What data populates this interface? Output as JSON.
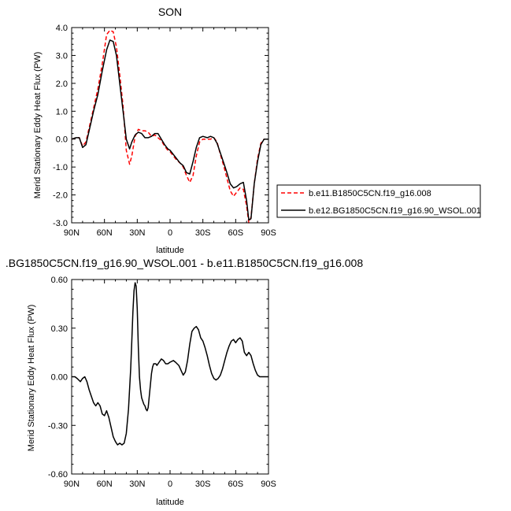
{
  "chart_data": [
    {
      "type": "line",
      "title": "SON",
      "xlabel": "latitude",
      "ylabel": "Merid Stationary Eddy Heat Flux (PW)",
      "xlim": [
        90,
        -90
      ],
      "ylim": [
        -3.0,
        4.0
      ],
      "xticks": [
        90,
        60,
        30,
        0,
        -30,
        -60,
        -90
      ],
      "xticklabels": [
        "90N",
        "60N",
        "30N",
        "0",
        "30S",
        "60S",
        "90S"
      ],
      "yticks": [
        -3.0,
        -2.0,
        -1.0,
        0.0,
        1.0,
        2.0,
        3.0,
        4.0
      ],
      "yticklabels": [
        "-3.0",
        "-2.0",
        "-1.0",
        "0.0",
        "1.0",
        "2.0",
        "3.0",
        "4.0"
      ],
      "legend_position": "right",
      "series": [
        {
          "name": "b.e11.B1850C5CN.f19_g16.008",
          "color": "#ff0000",
          "dash": "dashed",
          "x": [
            90,
            86,
            83,
            80,
            77,
            74,
            70,
            66,
            62,
            58,
            55,
            52,
            49,
            46,
            43,
            40,
            37,
            35,
            32,
            29,
            26,
            23,
            20,
            17,
            14,
            11,
            8,
            5,
            2,
            0,
            -3,
            -6,
            -9,
            -12,
            -15,
            -18,
            -21,
            -24,
            -27,
            -30,
            -34,
            -37,
            -40,
            -43,
            -46,
            -49,
            -52,
            -55,
            -58,
            -61,
            -64,
            -67,
            -70,
            -72,
            -74,
            -77,
            -80,
            -83,
            -86,
            -90
          ],
          "y": [
            0.0,
            0.05,
            0.05,
            -0.25,
            -0.1,
            0.4,
            1.1,
            1.8,
            2.7,
            3.75,
            3.9,
            3.85,
            3.3,
            2.3,
            1.2,
            -0.4,
            -0.9,
            -0.6,
            0.1,
            0.35,
            0.3,
            0.3,
            0.25,
            0.1,
            0.15,
            0.05,
            -0.05,
            -0.25,
            -0.4,
            -0.45,
            -0.6,
            -0.75,
            -0.85,
            -1.0,
            -1.3,
            -1.55,
            -1.3,
            -0.6,
            -0.1,
            0.0,
            0.0,
            0.0,
            0.05,
            -0.1,
            -0.55,
            -0.95,
            -1.4,
            -1.85,
            -2.05,
            -1.9,
            -1.75,
            -1.8,
            -2.4,
            -3.0,
            -2.8,
            -1.6,
            -0.7,
            -0.15,
            0.0,
            0.0
          ]
        },
        {
          "name": "b.e12.BG1850C5CN.f19_g16.90_WSOL.001",
          "color": "#000000",
          "dash": "solid",
          "x": [
            90,
            86,
            83,
            80,
            77,
            74,
            70,
            66,
            62,
            58,
            55,
            52,
            49,
            46,
            43,
            40,
            37,
            35,
            32,
            29,
            26,
            23,
            20,
            17,
            14,
            11,
            8,
            5,
            2,
            0,
            -3,
            -6,
            -9,
            -12,
            -15,
            -18,
            -21,
            -24,
            -27,
            -30,
            -34,
            -37,
            -40,
            -43,
            -46,
            -49,
            -52,
            -55,
            -58,
            -61,
            -64,
            -67,
            -70,
            -72,
            -74,
            -77,
            -80,
            -83,
            -86,
            -90
          ],
          "y": [
            0.0,
            0.05,
            0.05,
            -0.3,
            -0.2,
            0.3,
            1.0,
            1.6,
            2.45,
            3.2,
            3.55,
            3.5,
            3.0,
            2.0,
            1.0,
            0.0,
            -0.35,
            -0.1,
            0.15,
            0.25,
            0.2,
            0.05,
            0.05,
            0.1,
            0.2,
            0.2,
            0.0,
            -0.2,
            -0.35,
            -0.4,
            -0.55,
            -0.7,
            -0.85,
            -0.95,
            -1.2,
            -1.25,
            -0.8,
            -0.3,
            0.05,
            0.1,
            0.05,
            0.1,
            0.05,
            -0.15,
            -0.5,
            -0.85,
            -1.2,
            -1.6,
            -1.75,
            -1.7,
            -1.6,
            -1.55,
            -2.2,
            -2.9,
            -2.85,
            -1.6,
            -0.8,
            -0.2,
            0.0,
            0.0
          ]
        }
      ]
    },
    {
      "type": "line",
      "title": ".BG1850C5CN.f19_g16.90_WSOL.001 - b.e11.B1850C5CN.f19_g16.008",
      "xlabel": "latitude",
      "ylabel": "Merid Stationary Eddy Heat Flux (PW)",
      "xlim": [
        90,
        -90
      ],
      "ylim": [
        -0.6,
        0.6
      ],
      "xticks": [
        90,
        60,
        30,
        0,
        -30,
        -60,
        -90
      ],
      "xticklabels": [
        "90N",
        "60N",
        "30N",
        "0",
        "30S",
        "60S",
        "90S"
      ],
      "yticks": [
        -0.6,
        -0.3,
        0.0,
        0.3,
        0.6
      ],
      "yticklabels": [
        "-0.60",
        "-0.30",
        "0.00",
        "0.30",
        "0.60"
      ],
      "series": [
        {
          "color": "#000000",
          "dash": "solid",
          "x": [
            90,
            87,
            85,
            82,
            80,
            78,
            76,
            74,
            72,
            70,
            68,
            66,
            64,
            62,
            60,
            58,
            56,
            54,
            52,
            50,
            48,
            46,
            44,
            42,
            40,
            38,
            36,
            35,
            34,
            33,
            32,
            31,
            30,
            29,
            28,
            27,
            26,
            25,
            24,
            23,
            22,
            21,
            20,
            19,
            18,
            17,
            16,
            15,
            14,
            13,
            12,
            10,
            8,
            6,
            4,
            2,
            0,
            -3,
            -5,
            -8,
            -10,
            -12,
            -14,
            -16,
            -18,
            -20,
            -22,
            -24,
            -26,
            -28,
            -30,
            -32,
            -34,
            -36,
            -38,
            -40,
            -42,
            -44,
            -46,
            -48,
            -50,
            -52,
            -54,
            -56,
            -58,
            -60,
            -62,
            -64,
            -66,
            -68,
            -70,
            -72,
            -74,
            -76,
            -78,
            -80,
            -82,
            -85,
            -88,
            -90
          ],
          "y": [
            0.0,
            0.0,
            -0.01,
            -0.03,
            -0.01,
            0.0,
            -0.03,
            -0.08,
            -0.12,
            -0.16,
            -0.18,
            -0.16,
            -0.18,
            -0.23,
            -0.24,
            -0.21,
            -0.25,
            -0.31,
            -0.37,
            -0.4,
            -0.42,
            -0.41,
            -0.42,
            -0.41,
            -0.35,
            -0.2,
            0.05,
            0.22,
            0.4,
            0.53,
            0.58,
            0.56,
            0.42,
            0.18,
            0.0,
            -0.08,
            -0.13,
            -0.15,
            -0.17,
            -0.18,
            -0.2,
            -0.21,
            -0.19,
            -0.12,
            -0.05,
            0.02,
            0.06,
            0.08,
            0.08,
            0.08,
            0.07,
            0.09,
            0.11,
            0.1,
            0.08,
            0.08,
            0.09,
            0.1,
            0.09,
            0.07,
            0.04,
            0.01,
            0.03,
            0.1,
            0.2,
            0.28,
            0.3,
            0.31,
            0.29,
            0.24,
            0.22,
            0.18,
            0.13,
            0.07,
            0.02,
            -0.01,
            -0.02,
            -0.01,
            0.01,
            0.05,
            0.1,
            0.15,
            0.19,
            0.22,
            0.23,
            0.21,
            0.23,
            0.24,
            0.22,
            0.15,
            0.13,
            0.15,
            0.13,
            0.08,
            0.04,
            0.01,
            0.0,
            0.0,
            0.0,
            0.0
          ]
        }
      ]
    }
  ]
}
